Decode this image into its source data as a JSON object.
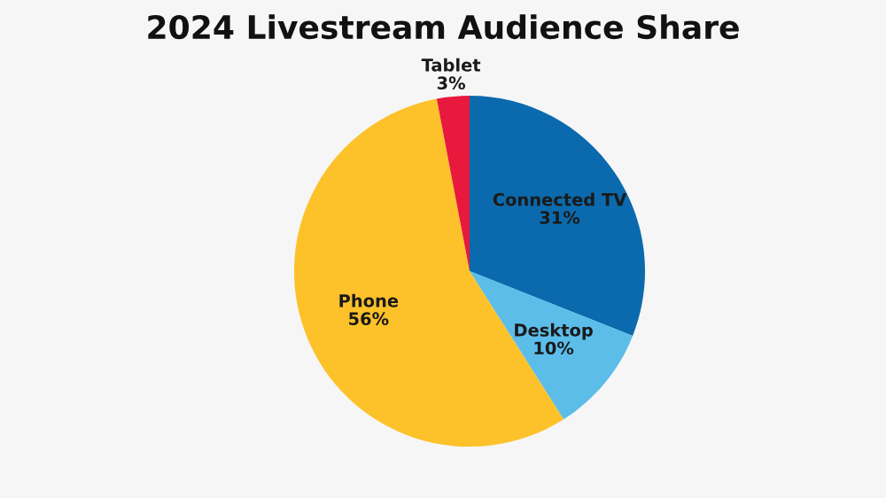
{
  "chart_data": {
    "type": "pie",
    "title": "2024 Livestream Audience Share",
    "categories": [
      "Connected TV",
      "Desktop",
      "Phone",
      "Tablet"
    ],
    "values": [
      31,
      10,
      56,
      3
    ],
    "value_labels": [
      "31%",
      "10%",
      "56%",
      "3%"
    ],
    "colors": [
      "#0b6aad",
      "#5cbde9",
      "#fdc22a",
      "#e8193c"
    ]
  }
}
